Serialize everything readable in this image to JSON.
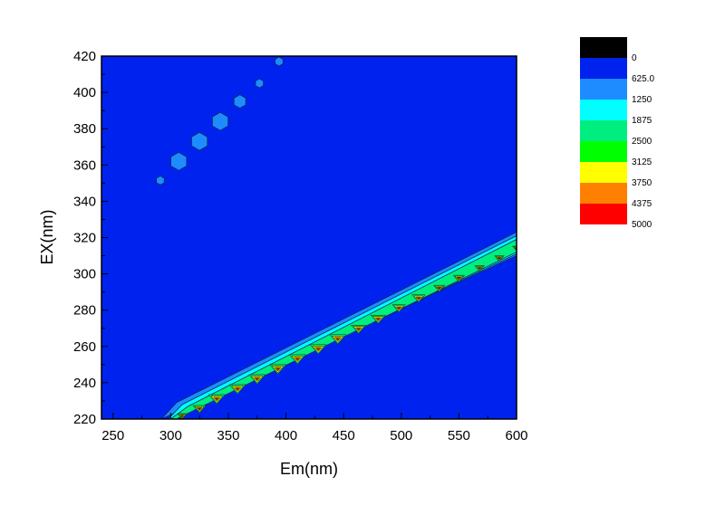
{
  "chart_data": {
    "type": "heatmap",
    "subtype": "filled-contour",
    "title": "",
    "xlabel": "Em(nm)",
    "ylabel": "EX(nm)",
    "xlim": [
      240,
      600
    ],
    "ylim": [
      220,
      420
    ],
    "x_ticks": [
      "250",
      "300",
      "350",
      "400",
      "450",
      "500",
      "550",
      "600"
    ],
    "y_ticks": [
      "220",
      "240",
      "260",
      "280",
      "300",
      "320",
      "340",
      "360",
      "380",
      "400",
      "420"
    ],
    "background_level_color": "#0022ee",
    "legend": {
      "placement": "right",
      "levels": [
        {
          "label": "0",
          "color": "#000000"
        },
        {
          "label": "625.0",
          "color": "#0022ee"
        },
        {
          "label": "1250",
          "color": "#1e8cff"
        },
        {
          "label": "1875",
          "color": "#00ffff"
        },
        {
          "label": "2500",
          "color": "#00ee80"
        },
        {
          "label": "3125",
          "color": "#00ff00"
        },
        {
          "label": "3750",
          "color": "#ffff00"
        },
        {
          "label": "4375",
          "color": "#ff8000"
        },
        {
          "label": "5000",
          "color": "#ff0000"
        }
      ]
    },
    "band": {
      "description_points": [
        {
          "em": 290,
          "ex": 220
        },
        {
          "em": 600,
          "ex": 318
        }
      ],
      "bands": [
        {
          "name": "outer",
          "color": "#1e8cff",
          "lower": [
            [
              292,
              220
            ],
            [
              600,
              310
            ]
          ],
          "upper": [
            [
              292,
              220
            ],
            [
              305,
              229
            ],
            [
              600,
              323
            ]
          ]
        },
        {
          "name": "mid",
          "color": "#00ffff",
          "lower": [
            [
              300,
              220
            ],
            [
              600,
              311
            ]
          ],
          "upper": [
            [
              298,
              220
            ],
            [
              310,
              228
            ],
            [
              600,
              321
            ]
          ]
        },
        {
          "name": "inner",
          "color": "#00ee80",
          "lower": [
            [
              305,
              220
            ],
            [
              600,
              312
            ]
          ],
          "upper": [
            [
              300,
              220
            ],
            [
              315,
              227
            ],
            [
              600,
              319
            ]
          ]
        }
      ],
      "peaks": [
        {
          "em": 310,
          "ex": 221.5,
          "size": 0.6
        },
        {
          "em": 325,
          "ex": 225.5,
          "size": 0.8
        },
        {
          "em": 340,
          "ex": 231,
          "size": 1.0
        },
        {
          "em": 358,
          "ex": 236.5,
          "size": 1.0
        },
        {
          "em": 375,
          "ex": 242,
          "size": 1.0
        },
        {
          "em": 393,
          "ex": 247.5,
          "size": 1.0
        },
        {
          "em": 410,
          "ex": 253,
          "size": 1.0
        },
        {
          "em": 428,
          "ex": 258.5,
          "size": 1.0
        },
        {
          "em": 445,
          "ex": 264,
          "size": 1.0
        },
        {
          "em": 463,
          "ex": 269.5,
          "size": 0.9
        },
        {
          "em": 480,
          "ex": 275,
          "size": 0.9
        },
        {
          "em": 498,
          "ex": 281,
          "size": 0.8
        },
        {
          "em": 515,
          "ex": 286.5,
          "size": 0.8
        },
        {
          "em": 533,
          "ex": 292,
          "size": 0.7
        },
        {
          "em": 550,
          "ex": 297.5,
          "size": 0.7
        },
        {
          "em": 568,
          "ex": 303,
          "size": 0.6
        },
        {
          "em": 585,
          "ex": 308.5,
          "size": 0.6
        },
        {
          "em": 600,
          "ex": 314,
          "size": 0.5
        }
      ]
    },
    "islands": [
      {
        "em": 291,
        "ex": 351.5,
        "level": "1250",
        "size": 1
      },
      {
        "em": 307,
        "ex": 362,
        "level": "1250",
        "size": 2
      },
      {
        "em": 325,
        "ex": 373,
        "level": "1250",
        "size": 2
      },
      {
        "em": 343,
        "ex": 384,
        "level": "1250",
        "size": 2
      },
      {
        "em": 360,
        "ex": 395,
        "level": "1250",
        "size": 1.5
      },
      {
        "em": 377,
        "ex": 405,
        "level": "1250",
        "size": 1
      },
      {
        "em": 394,
        "ex": 417,
        "level": "1250",
        "size": 1
      }
    ]
  }
}
